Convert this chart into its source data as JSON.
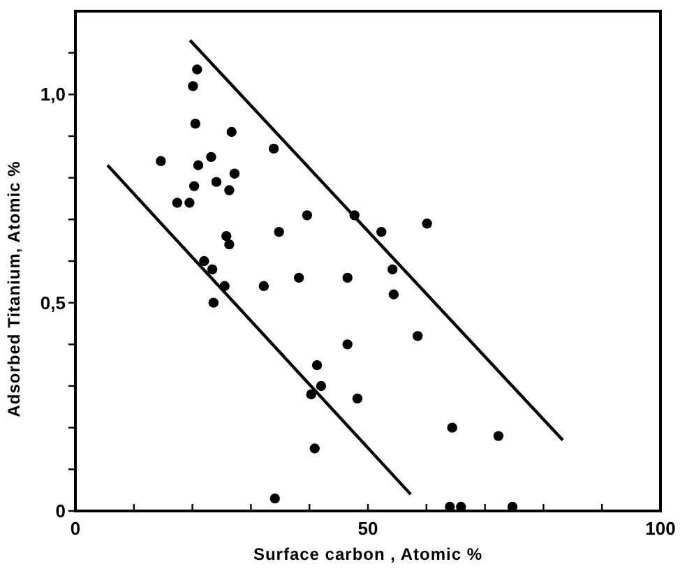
{
  "chart_data": {
    "type": "scatter",
    "xlabel": "Surface carbon , Atomic %",
    "ylabel": "Adsorbed Titanium, Atomic %",
    "xlim": [
      0,
      100
    ],
    "ylim": [
      0,
      1.2
    ],
    "xticks": [
      0,
      {
        "value": 10,
        "label": null
      },
      {
        "value": 20,
        "label": null
      },
      {
        "value": 30,
        "label": null
      },
      {
        "value": 40,
        "label": null
      },
      50,
      {
        "value": 60,
        "label": null
      },
      {
        "value": 70,
        "label": null
      },
      {
        "value": 80,
        "label": null
      },
      {
        "value": 90,
        "label": null
      },
      100
    ],
    "yticks": [
      0,
      {
        "value": 0.1,
        "label": null
      },
      {
        "value": 0.2,
        "label": null
      },
      {
        "value": 0.3,
        "label": null
      },
      {
        "value": 0.4,
        "label": null
      },
      {
        "value": 0.5,
        "label": "0,5"
      },
      {
        "value": 0.6,
        "label": null
      },
      {
        "value": 0.7,
        "label": null
      },
      {
        "value": 0.8,
        "label": null
      },
      {
        "value": 0.9,
        "label": null
      },
      {
        "value": 1.0,
        "label": "1,0"
      },
      {
        "value": 1.1,
        "label": null
      }
    ],
    "grid": false,
    "series": [
      {
        "type": "scatter",
        "color": "#000000",
        "marker": "circle",
        "x": [
          14.6,
          20.8,
          20.1,
          20.5,
          26.7,
          33.9,
          23.2,
          21.0,
          27.2,
          24.1,
          20.3,
          26.3,
          17.4,
          19.5,
          39.6,
          34.8,
          25.8,
          26.3,
          22.0,
          23.4,
          38.2,
          46.5,
          47.7,
          52.3,
          60.1,
          54.2,
          25.5,
          23.6,
          32.2,
          46.5,
          41.3,
          42.0,
          40.3,
          48.2,
          40.9,
          34.1,
          54.4,
          58.5,
          64.4,
          72.3,
          64.0,
          65.9,
          74.7
        ],
        "values": [
          0.84,
          1.06,
          1.02,
          0.93,
          0.91,
          0.87,
          0.85,
          0.83,
          0.81,
          0.79,
          0.78,
          0.77,
          0.74,
          0.74,
          0.71,
          0.67,
          0.66,
          0.64,
          0.6,
          0.58,
          0.56,
          0.56,
          0.71,
          0.67,
          0.69,
          0.58,
          0.54,
          0.5,
          0.54,
          0.4,
          0.35,
          0.3,
          0.28,
          0.27,
          0.15,
          0.03,
          0.52,
          0.42,
          0.2,
          0.18,
          0.01,
          0.01,
          0.01
        ]
      },
      {
        "type": "line",
        "color": "#000000",
        "marker": "none",
        "line_style": "solid",
        "x": [
          19.6,
          83.3
        ],
        "values": [
          1.13,
          0.17
        ]
      },
      {
        "type": "line",
        "color": "#000000",
        "marker": "none",
        "line_style": "solid",
        "x": [
          5.5,
          57.3
        ],
        "values": [
          0.83,
          0.04
        ]
      }
    ]
  }
}
